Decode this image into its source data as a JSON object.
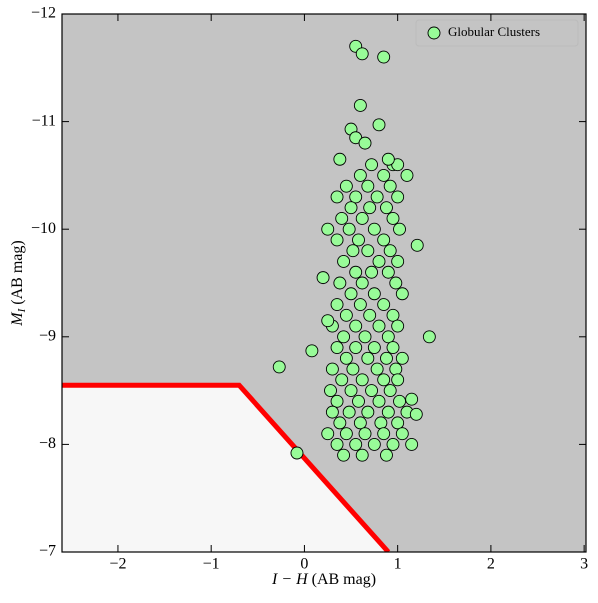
{
  "chart_data": {
    "type": "scatter",
    "xlabel": {
      "italic": "I − H",
      "rest": "(AB mag)"
    },
    "ylabel": {
      "italic": "M",
      "sub": "I",
      "rest": "(AB mag)"
    },
    "xlim": [
      -2.6,
      3.02
    ],
    "ylim": [
      -7,
      -12
    ],
    "xticks": [
      {
        "value": -2,
        "label": "−2"
      },
      {
        "value": -1,
        "label": "−1"
      },
      0,
      1,
      2,
      3
    ],
    "yticks": [
      {
        "value": -7,
        "label": "−7"
      },
      {
        "value": -8,
        "label": "−8"
      },
      {
        "value": -9,
        "label": "−9"
      },
      {
        "value": -10,
        "label": "−10"
      },
      {
        "value": -11,
        "label": "−11"
      },
      {
        "value": -12,
        "label": "−12"
      }
    ],
    "plot_background": "#c4c4c4",
    "region_color": "#f7f7f7",
    "boundary": {
      "color": "#ff0000",
      "x": [
        -2.6,
        -0.7,
        0.9
      ],
      "y": [
        -8.55,
        -8.55,
        -7
      ]
    },
    "legend": "upper right",
    "series": [
      {
        "name": "Globular Clusters",
        "color": "#98fb98",
        "x": [
          0.72,
          0.95,
          1.0,
          0.6,
          0.85,
          1.1,
          0.45,
          0.68,
          0.92,
          0.35,
          0.55,
          0.78,
          1.0,
          0.5,
          0.7,
          0.88,
          0.4,
          0.62,
          0.95,
          0.48,
          0.75,
          1.02,
          0.35,
          0.58,
          0.85,
          0.52,
          0.68,
          0.92,
          0.42,
          0.8,
          1.0,
          0.55,
          0.72,
          0.9,
          0.38,
          0.62,
          0.98,
          0.5,
          0.75,
          1.05,
          0.35,
          0.6,
          0.85,
          0.45,
          0.7,
          0.95,
          0.3,
          0.55,
          0.8,
          1.0,
          0.42,
          0.65,
          0.9,
          0.35,
          0.55,
          0.75,
          0.95,
          0.45,
          0.68,
          0.88,
          1.05,
          0.3,
          0.52,
          0.78,
          0.98,
          0.4,
          0.62,
          0.85,
          1.0,
          0.28,
          0.5,
          0.72,
          0.92,
          0.35,
          0.58,
          0.8,
          1.02,
          0.3,
          0.48,
          0.68,
          0.9,
          1.1,
          0.38,
          0.6,
          0.82,
          1.0,
          0.25,
          0.45,
          0.65,
          0.85,
          1.05,
          0.35,
          0.55,
          0.75,
          0.95,
          1.15,
          0.42,
          0.62,
          0.88,
          0.55,
          0.62,
          0.85,
          0.6,
          0.8,
          0.5,
          0.55,
          0.65,
          0.38,
          0.9,
          1.21,
          1.34,
          -0.27,
          0.08,
          -0.08,
          1.15,
          1.2,
          0.25,
          0.2,
          0.25
        ],
        "values": [
          -10.6,
          -10.6,
          -10.6,
          -10.5,
          -10.5,
          -10.5,
          -10.4,
          -10.4,
          -10.4,
          -10.3,
          -10.3,
          -10.3,
          -10.3,
          -10.2,
          -10.2,
          -10.2,
          -10.1,
          -10.1,
          -10.1,
          -10.0,
          -10.0,
          -10.0,
          -9.9,
          -9.9,
          -9.9,
          -9.8,
          -9.8,
          -9.8,
          -9.7,
          -9.7,
          -9.7,
          -9.6,
          -9.6,
          -9.6,
          -9.5,
          -9.5,
          -9.5,
          -9.4,
          -9.4,
          -9.4,
          -9.3,
          -9.3,
          -9.3,
          -9.2,
          -9.2,
          -9.2,
          -9.1,
          -9.1,
          -9.1,
          -9.1,
          -9.0,
          -9.0,
          -9.0,
          -8.9,
          -8.9,
          -8.9,
          -8.9,
          -8.8,
          -8.8,
          -8.8,
          -8.8,
          -8.7,
          -8.7,
          -8.7,
          -8.7,
          -8.6,
          -8.6,
          -8.6,
          -8.6,
          -8.5,
          -8.5,
          -8.5,
          -8.5,
          -8.4,
          -8.4,
          -8.4,
          -8.4,
          -8.3,
          -8.3,
          -8.3,
          -8.3,
          -8.3,
          -8.2,
          -8.2,
          -8.2,
          -8.2,
          -8.1,
          -8.1,
          -8.1,
          -8.1,
          -8.1,
          -8.0,
          -8.0,
          -8.0,
          -8.0,
          -8.0,
          -7.9,
          -7.9,
          -7.9,
          -11.7,
          -11.63,
          -11.6,
          -11.15,
          -10.97,
          -10.93,
          -10.85,
          -10.8,
          -10.65,
          -10.65,
          -9.85,
          -9.0,
          -8.72,
          -8.87,
          -7.92,
          -8.42,
          -8.28,
          -10.0,
          -9.55,
          -9.15
        ]
      }
    ]
  }
}
